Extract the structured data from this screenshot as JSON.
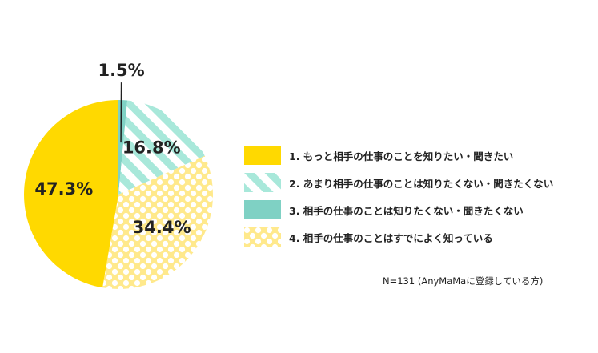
{
  "chart_data": {
    "type": "pie",
    "title": "",
    "categories": [
      "1. もっと相手の仕事のことを知りたい・聞きたい",
      "2. あまり相手の仕事のことは知りたくない・聞きたくない",
      "3. 相手の仕事のことは知りたくない・聞きたくない",
      "4. 相手の仕事のことはすでによく知っている"
    ],
    "values": [
      47.3,
      16.8,
      1.5,
      34.4
    ],
    "value_labels": [
      "47.3%",
      "16.8%",
      "1.5%",
      "34.4%"
    ],
    "colors": [
      "#ffd900",
      "#a8e8da",
      "#7fd1c4",
      "#ffe98c"
    ],
    "patterns": [
      "solid",
      "stripes",
      "solid",
      "dots"
    ],
    "slice_order": [
      2,
      1,
      3,
      0
    ],
    "legend_position": "right"
  },
  "note": "N=131 (AnyMaMaに登録している方)"
}
